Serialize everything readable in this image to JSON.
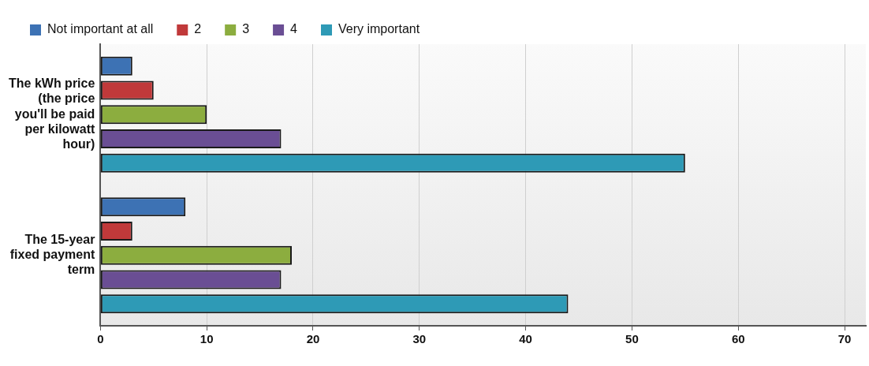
{
  "chart_data": {
    "type": "bar",
    "orientation": "horizontal",
    "categories": [
      "The kWh price (the price you'll be paid per kilowatt hour)",
      "The 15-year fixed payment term"
    ],
    "series": [
      {
        "name": "Not important at all",
        "color": "#3d72b4",
        "values": [
          3,
          8
        ]
      },
      {
        "name": "2",
        "color": "#c0393a",
        "values": [
          5,
          3
        ]
      },
      {
        "name": "3",
        "color": "#8cad3f",
        "values": [
          10,
          18
        ]
      },
      {
        "name": "4",
        "color": "#6a4e94",
        "values": [
          17,
          17
        ]
      },
      {
        "name": "Very important",
        "color": "#2e9ab6",
        "values": [
          55,
          44
        ]
      }
    ],
    "xlim": [
      0,
      72
    ],
    "xticks": [
      0,
      10,
      20,
      30,
      40,
      50,
      60,
      70
    ],
    "grid": "x",
    "legend": "top left"
  }
}
